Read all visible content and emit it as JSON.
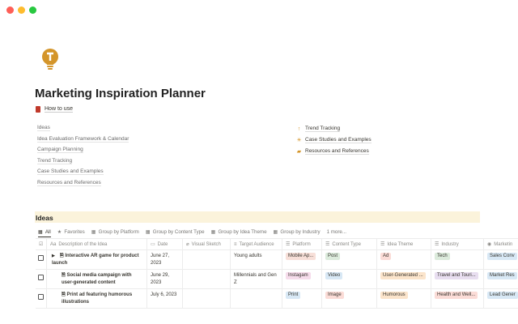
{
  "window": {
    "controls": [
      "close",
      "minimize",
      "maximize"
    ],
    "colors": [
      "#fe5f57",
      "#febc2e",
      "#28c840"
    ]
  },
  "page": {
    "icon": "lightbulb-icon",
    "title": "Marketing Inspiration Planner",
    "how_to": "How to use"
  },
  "links": [
    "Ideas",
    "Idea Evaluation Framework & Calendar",
    "Campaign Planning",
    "Trend Tracking",
    "Case Studies and Examples",
    "Resources and References"
  ],
  "right_links": [
    {
      "icon": "arrow-up-icon",
      "glyph": "↑",
      "label": "Trend Tracking"
    },
    {
      "icon": "sun-icon",
      "glyph": "☀",
      "label": "Case Studies and Examples"
    },
    {
      "icon": "note-icon",
      "glyph": "▰",
      "label": "Resources and References"
    }
  ],
  "ideas": {
    "heading": "Ideas",
    "accent": "#fbf3db",
    "tabs": [
      {
        "icon": "table-icon",
        "label": "All"
      },
      {
        "icon": "star-icon",
        "label": "Favorites"
      },
      {
        "icon": "table-icon",
        "label": "Group by Platform"
      },
      {
        "icon": "table-icon",
        "label": "Group by Content Type"
      },
      {
        "icon": "table-icon",
        "label": "Group by Idea Theme"
      },
      {
        "icon": "table-icon",
        "label": "Group by Industry"
      },
      {
        "icon": "",
        "label": "1 more..."
      }
    ],
    "columns": [
      "Description of the Idea",
      "Date",
      "Visual Sketch",
      "Target Audience",
      "Platform",
      "Content Type",
      "Idea Theme",
      "Industry",
      "Marketin"
    ],
    "rows": [
      {
        "desc": "Interactive AR game for product launch",
        "date": "June 27, 2023",
        "sketch": "",
        "audience": "Young adults",
        "platform": "Mobile Ap...",
        "content": "Post",
        "theme": "Ad",
        "industry": "Tech",
        "marketing": "Sales Conv"
      },
      {
        "desc": "Social media campaign with user-generated content",
        "date": "June 29, 2023",
        "sketch": "",
        "audience": "Millennials and Gen Z",
        "platform": "Instagam",
        "content": "Video",
        "theme": "User-Generated ...",
        "industry": "Travel and Touri...",
        "marketing": "Market Res"
      },
      {
        "desc": "Print ad featuring humorous illustrations",
        "date": "July 6, 2023",
        "sketch": "",
        "audience": "",
        "platform": "Print",
        "content": "Image",
        "theme": "Humorous",
        "industry": "Health and Well...",
        "marketing": "Lead Gener"
      }
    ],
    "tag_colors": {
      "platform": [
        "#f7dfd8",
        "#f6dceb",
        "#d8e8f5"
      ],
      "content": [
        "#dcebdc",
        "#d8e8f5",
        "#fbdcd7"
      ],
      "theme": [
        "#fbdcd7",
        "#fbe4cb",
        "#fbe4cb"
      ],
      "industry": [
        "#dcebdc",
        "#e8def0",
        "#fbdcd7"
      ],
      "marketing": [
        "#d8e8f5",
        "#d8e8f5",
        "#d8e8f5"
      ]
    }
  }
}
